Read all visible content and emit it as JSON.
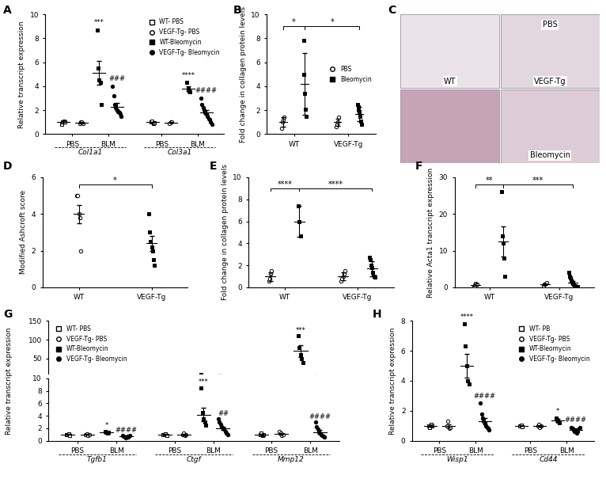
{
  "chart_data": [
    {
      "panel": "A",
      "type": "scatter",
      "categories": [
        "Col1a1",
        "Col3a1"
      ],
      "ylabel": "Relative transcript expression",
      "ylim": [
        0,
        10
      ],
      "yticks": [
        0,
        2,
        4,
        6,
        8,
        10
      ],
      "legend": "upper right",
      "series": [
        {
          "name": "WT- PBS",
          "group": "PBS",
          "marker": "square_open",
          "color": "#000000",
          "values": [
            [
              0.8,
              1.0,
              1.1,
              1.0
            ],
            [
              1.0,
              1.1,
              0.9,
              0.95
            ]
          ],
          "means": [
            1.0,
            1.0
          ],
          "errors": [
            0.1,
            0.05
          ],
          "annotations": [
            null,
            null
          ]
        },
        {
          "name": "VEGF-Tg- PBS",
          "group": "PBS",
          "marker": "circle_open",
          "color": "#000000",
          "values": [
            [
              0.9,
              1.0,
              1.0,
              0.9
            ],
            [
              0.9,
              1.0,
              1.0
            ]
          ],
          "means": [
            0.95,
            0.97
          ],
          "errors": [
            0.05,
            0.05
          ],
          "annotations": [
            null,
            null
          ]
        },
        {
          "name": "WT-Bleomycin",
          "group": "BLM",
          "marker": "square",
          "color": "#000000",
          "values": [
            [
              8.7,
              5.5,
              4.5,
              4.3,
              2.5
            ],
            [
              4.3,
              3.8,
              3.6,
              3.5
            ]
          ],
          "means": [
            5.1,
            3.8
          ],
          "errors": [
            1.0,
            0.2
          ],
          "annotations": [
            "***",
            "****"
          ]
        },
        {
          "name": "VEGF-Tg- Bleomycin",
          "group": "BLM",
          "marker": "circle",
          "color": "#000000",
          "values": [
            [
              4.0,
              3.2,
              2.5,
              2.2,
              2.0,
              1.9,
              1.8,
              1.7,
              1.5
            ],
            [
              3.0,
              2.5,
              2.2,
              2.0,
              1.8,
              1.7,
              1.5,
              1.3,
              1.2,
              1.0,
              0.8
            ]
          ],
          "means": [
            2.3,
            1.8
          ],
          "errors": [
            0.3,
            0.2
          ],
          "annotations": [
            "###",
            "####"
          ]
        }
      ]
    },
    {
      "panel": "B",
      "type": "scatter",
      "categories": [
        "WT",
        "VEGF-Tg"
      ],
      "ylabel": "Fold change in collagen protein levels",
      "ylim": [
        0,
        10
      ],
      "yticks": [
        0,
        2,
        4,
        6,
        8,
        10
      ],
      "legend": "center right",
      "series": [
        {
          "name": "PBS",
          "marker": "circle_open",
          "color": "#000000",
          "values": [
            [
              0.5,
              1.0,
              1.2,
              1.4
            ],
            [
              0.6,
              0.8,
              1.0,
              1.4
            ]
          ],
          "means": [
            1.0,
            1.0
          ],
          "errors": [
            0.4,
            0.3
          ]
        },
        {
          "name": "Bleomycin",
          "marker": "square",
          "color": "#000000",
          "values": [
            [
              7.8,
              5.0,
              3.4,
              2.1,
              1.5
            ],
            [
              2.5,
              2.3,
              2.0,
              1.9,
              1.5,
              1.1,
              0.8
            ]
          ],
          "means": [
            4.2,
            1.7
          ],
          "errors": [
            2.6,
            0.6
          ]
        }
      ],
      "brackets": [
        {
          "x": [
            [
              "WT",
              "PBS"
            ],
            [
              "WT",
              "Bleomycin"
            ]
          ],
          "y": 9.0,
          "label": "*"
        },
        {
          "x": [
            [
              "WT",
              "Bleomycin"
            ],
            [
              "VEGF-Tg",
              "Bleomycin"
            ]
          ],
          "y": 9.0,
          "label": "*"
        }
      ]
    },
    {
      "panel": "C",
      "type": "image",
      "labels": [
        "PBS",
        "VEGF-Tg",
        "WT",
        "Bleomycin"
      ]
    },
    {
      "panel": "D",
      "type": "scatter",
      "categories": [
        "WT",
        "VEGF-Tg"
      ],
      "ylabel": "Modified Ashcroft score",
      "ylim": [
        0,
        6
      ],
      "yticks": [
        0,
        2,
        4,
        6
      ],
      "series": [
        {
          "marker": "circle_open",
          "color": "#000000",
          "values": [
            [
              5.0,
              5.0,
              4.0,
              3.8,
              2.0
            ],
            null
          ],
          "means": [
            4.0,
            null
          ],
          "errors": [
            0.5,
            null
          ]
        },
        {
          "marker": "square",
          "color": "#000000",
          "values": [
            null,
            [
              4.0,
              3.0,
              2.5,
              2.2,
              2.0,
              1.5,
              1.2
            ]
          ],
          "means": [
            null,
            2.4
          ],
          "errors": [
            null,
            0.4
          ]
        }
      ],
      "brackets": [
        {
          "x": [
            [
              "WT"
            ],
            [
              "VEGF-Tg"
            ]
          ],
          "y": 5.6,
          "label": "*"
        }
      ]
    },
    {
      "panel": "E",
      "type": "scatter",
      "categories": [
        "WT",
        "VEGF-Tg"
      ],
      "ylabel": "Fold change in collagen protein levels",
      "ylim": [
        0,
        10
      ],
      "yticks": [
        0,
        2,
        4,
        6,
        8,
        10
      ],
      "series": [
        {
          "name": "PBS",
          "marker": "circle_open",
          "color": "#000000",
          "values": [
            [
              0.6,
              0.8,
              1.2,
              1.5
            ],
            [
              0.6,
              0.8,
              1.0,
              1.2,
              1.5
            ]
          ],
          "means": [
            1.0,
            1.0
          ],
          "errors": [
            0.4,
            0.35
          ]
        },
        {
          "name": "Bleomycin",
          "marker": "square",
          "color": "#000000",
          "values": [
            [
              7.4,
              6.0,
              4.7
            ],
            [
              2.7,
              2.5,
              2.0,
              1.8,
              1.4,
              1.0,
              0.9
            ]
          ],
          "means": [
            6.0,
            1.7
          ],
          "errors": [
            1.4,
            0.7
          ]
        }
      ],
      "brackets": [
        {
          "x": [
            [
              "WT",
              "PBS"
            ],
            [
              "WT",
              "Bleomycin"
            ]
          ],
          "y": 9.0,
          "label": "****"
        },
        {
          "x": [
            [
              "WT",
              "Bleomycin"
            ],
            [
              "VEGF-Tg",
              "Bleomycin"
            ]
          ],
          "y": 9.0,
          "label": "****"
        }
      ]
    },
    {
      "panel": "F",
      "type": "scatter",
      "categories": [
        "WT",
        "VEGF-Tg"
      ],
      "ylabel": "Relative Acta1 transcript expression",
      "ylim": [
        0,
        30
      ],
      "yticks": [
        0,
        10,
        20,
        30
      ],
      "series": [
        {
          "name": "PBS",
          "marker": "circle_open",
          "color": "#000000",
          "values": [
            [
              0.3,
              0.5,
              1.0,
              0.8
            ],
            [
              0.5,
              0.8,
              1.0,
              1.2
            ]
          ],
          "means": [
            0.7,
            0.9
          ],
          "errors": [
            0.3,
            0.2
          ]
        },
        {
          "name": "Bleomycin",
          "marker": "square",
          "color": "#000000",
          "values": [
            [
              26.0,
              14.0,
              12.0,
              8.0,
              3.0
            ],
            [
              4.0,
              3.0,
              2.5,
              2.0,
              1.5,
              1.0,
              0.8,
              0.5,
              0.5,
              0.3,
              0.2
            ]
          ],
          "means": [
            12.5,
            1.4
          ],
          "errors": [
            4.0,
            0.4
          ]
        }
      ],
      "brackets": [
        {
          "x": [
            [
              "WT",
              "PBS"
            ],
            [
              "WT",
              "Bleomycin"
            ]
          ],
          "y": 28,
          "label": "**"
        },
        {
          "x": [
            [
              "WT",
              "Bleomycin"
            ],
            [
              "VEGF-Tg",
              "Bleomycin"
            ]
          ],
          "y": 28,
          "label": "***"
        }
      ]
    },
    {
      "panel": "G",
      "type": "scatter",
      "categories": [
        "Tgfb1",
        "Ctgf",
        "Mmp12"
      ],
      "ylabel": "Relative transcript expression",
      "ylim": [
        [
          0,
          10
        ],
        [
          10,
          150
        ]
      ],
      "yticks": [
        [
          0,
          2,
          4,
          6,
          8,
          10
        ],
        [
          50,
          100,
          150
        ]
      ],
      "legend": "upper left",
      "series": [
        {
          "name": "WT- PBS",
          "group": "PBS",
          "marker": "square_open",
          "color": "#000000",
          "values": [
            [
              1.0,
              1.0,
              1.1,
              0.9
            ],
            [
              1.0,
              1.0,
              1.1,
              0.9
            ],
            [
              1.0,
              1.2,
              0.8,
              1.0
            ]
          ],
          "means": [
            1.0,
            1.0,
            1.0
          ],
          "errors": [
            0.05,
            0.05,
            0.1
          ],
          "annotations": [
            null,
            null,
            null
          ]
        },
        {
          "name": "VEGF-Tg- PBS",
          "group": "PBS",
          "marker": "circle_open",
          "color": "#000000",
          "values": [
            [
              1.0,
              1.1,
              0.9,
              1.0
            ],
            [
              1.0,
              1.2,
              0.8,
              1.0
            ],
            [
              1.5,
              1.2,
              0.8,
              1.0
            ]
          ],
          "means": [
            1.0,
            1.0,
            1.1
          ],
          "errors": [
            0.05,
            0.1,
            0.15
          ],
          "annotations": [
            null,
            null,
            null
          ]
        },
        {
          "name": "WT-Bleomycin",
          "group": "BLM",
          "marker": "square",
          "color": "#000000",
          "values": [
            [
              1.5,
              1.3,
              1.2,
              1.4
            ],
            [
              8.5,
              4.5,
              3.5,
              3.0,
              2.5
            ],
            [
              110,
              80,
              60,
              50,
              40
            ]
          ],
          "means": [
            1.35,
            4.2,
            70
          ],
          "errors": [
            0.1,
            1.1,
            15
          ],
          "annotations": [
            "*",
            "***",
            "***"
          ]
        },
        {
          "name": "VEGF-Tg- Bleomycin",
          "group": "BLM",
          "marker": "circle",
          "color": "#000000",
          "values": [
            [
              0.8,
              0.7,
              0.6,
              0.5,
              0.7,
              0.6,
              0.8
            ],
            [
              3.5,
              3.0,
              2.6,
              2.2,
              2.0,
              1.8,
              1.5,
              1.2,
              1.0
            ],
            [
              3.0,
              2.2,
              1.8,
              1.5,
              1.2,
              1.0,
              0.8,
              0.7,
              0.6
            ]
          ],
          "means": [
            0.65,
            2.0,
            1.4
          ],
          "errors": [
            0.05,
            0.3,
            0.3
          ],
          "annotations": [
            "####",
            "##",
            "####"
          ]
        }
      ]
    },
    {
      "panel": "H",
      "type": "scatter",
      "categories": [
        "Wisp1",
        "Cd44"
      ],
      "ylabel": "Relative transcript expression",
      "ylim": [
        0,
        8
      ],
      "yticks": [
        0,
        2,
        4,
        6,
        8
      ],
      "legend": "upper right",
      "series": [
        {
          "name": "WT- PB",
          "group": "PBS",
          "marker": "square_open",
          "color": "#000000",
          "values": [
            [
              1.0,
              0.9,
              1.1,
              1.0
            ],
            [
              1.0,
              1.05,
              0.95
            ]
          ],
          "means": [
            1.0,
            1.0
          ],
          "errors": [
            0.05,
            0.03
          ],
          "annotations": [
            null,
            null
          ]
        },
        {
          "name": "VEGF-Tg- PBS",
          "group": "PBS",
          "marker": "circle_open",
          "color": "#000000",
          "values": [
            [
              1.0,
              1.3,
              0.8,
              0.9
            ],
            [
              1.0,
              1.1,
              0.9,
              1.0
            ]
          ],
          "means": [
            1.0,
            1.0
          ],
          "errors": [
            0.1,
            0.05
          ],
          "annotations": [
            null,
            null
          ]
        },
        {
          "name": "WT-Bleomycin",
          "group": "BLM",
          "marker": "square",
          "color": "#000000",
          "values": [
            [
              7.8,
              6.3,
              5.0,
              4.0,
              3.8
            ],
            [
              1.5,
              1.4,
              1.3,
              1.2
            ]
          ],
          "means": [
            5.0,
            1.35
          ],
          "errors": [
            0.8,
            0.1
          ],
          "annotations": [
            "****",
            "*"
          ]
        },
        {
          "name": "VEGF-Tg- Bleomycin",
          "group": "BLM",
          "marker": "circle",
          "color": "#000000",
          "values": [
            [
              2.5,
              1.8,
              1.5,
              1.3,
              1.2,
              1.0,
              0.9,
              0.8,
              0.7
            ],
            [
              0.9,
              0.8,
              0.7,
              0.6,
              0.7,
              0.5,
              0.6,
              0.8,
              0.9
            ]
          ],
          "means": [
            1.3,
            0.7
          ],
          "errors": [
            0.2,
            0.05
          ],
          "annotations": [
            "####",
            "####"
          ]
        }
      ]
    }
  ]
}
